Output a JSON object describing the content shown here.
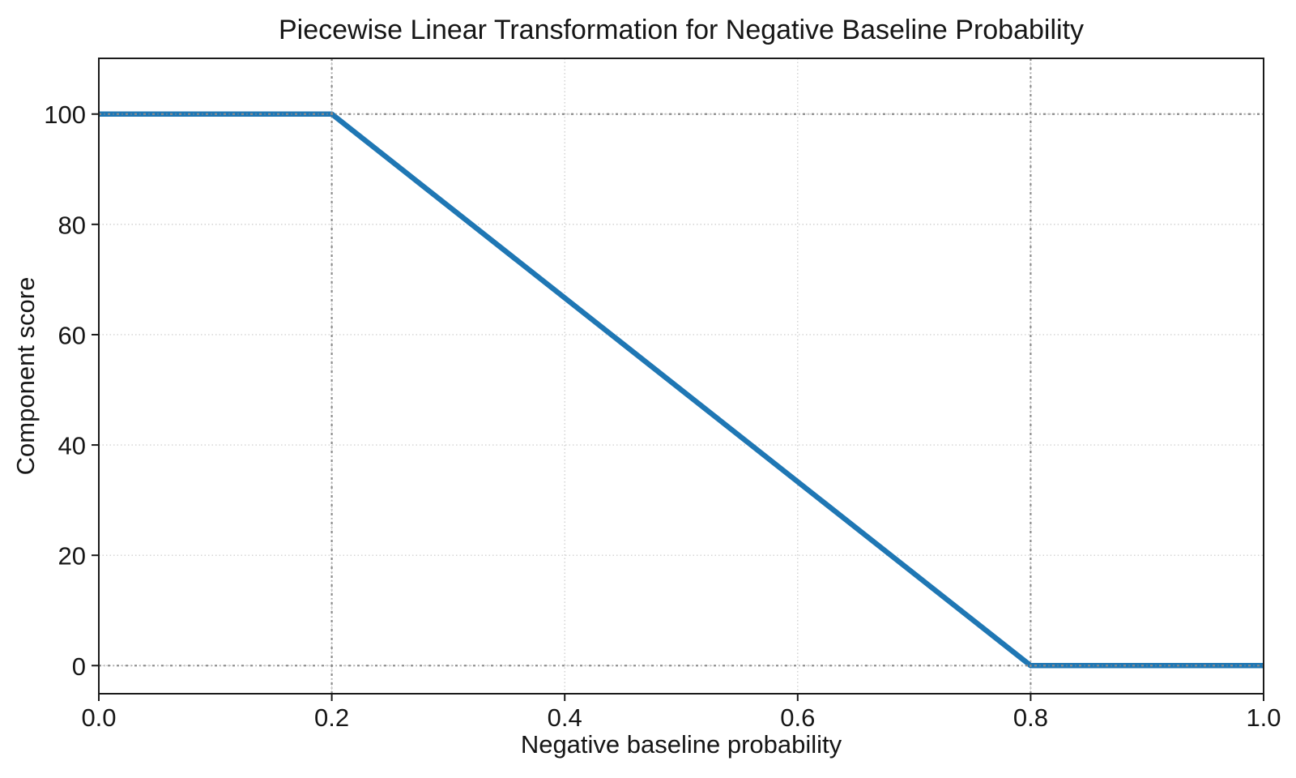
{
  "chart_data": {
    "type": "line",
    "title": "Piecewise Linear Transformation for Negative Baseline Probability",
    "xlabel": "Negative baseline probability",
    "ylabel": "Component score",
    "xlim": [
      0.0,
      1.0
    ],
    "ylim": [
      -5.1,
      110.1
    ],
    "xticks": {
      "values": [
        0.0,
        0.2,
        0.4,
        0.6,
        0.8,
        1.0
      ],
      "labels": [
        "0.0",
        "0.2",
        "0.4",
        "0.6",
        "0.8",
        "1.0"
      ]
    },
    "yticks": {
      "values": [
        0,
        20,
        40,
        60,
        80,
        100
      ],
      "labels": [
        "0",
        "20",
        "40",
        "60",
        "80",
        "100"
      ]
    },
    "series": [
      {
        "name": "component score",
        "color": "#1f77b4",
        "line_width": 6.5,
        "points_x": [
          0.0,
          0.2,
          0.8,
          1.0
        ],
        "points_y": [
          100,
          100,
          0,
          0
        ]
      }
    ],
    "grid": {
      "on": true,
      "color": "#c9c9c9",
      "line_style": "dotted"
    },
    "reference_lines": {
      "color": "#8b8b8b",
      "line_style": "dash-dot",
      "vertical_x": [
        0.2,
        0.8
      ],
      "horizontal_y": [
        100,
        0
      ]
    },
    "legend": {
      "visible": false
    },
    "colors": {
      "background": "#ffffff",
      "axis": "#1a1a1a",
      "text": "#161616"
    }
  }
}
